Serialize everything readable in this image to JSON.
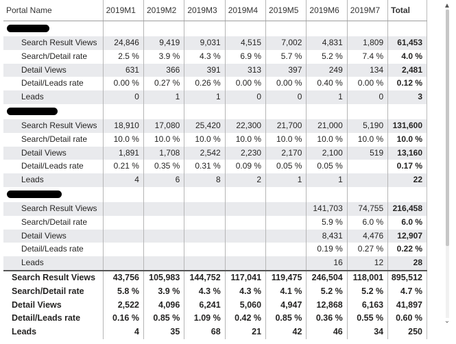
{
  "columns": {
    "name_header": "Portal Name",
    "months": [
      "2019M1",
      "2019M2",
      "2019M3",
      "2019M4",
      "2019M5",
      "2019M6",
      "2019M7"
    ],
    "total_header": "Total"
  },
  "groups": [
    {
      "rows": [
        {
          "label": "Search Result Views",
          "values": [
            "24,846",
            "9,419",
            "9,031",
            "4,515",
            "7,002",
            "4,831",
            "1,809"
          ],
          "total": "61,453"
        },
        {
          "label": "Search/Detail rate",
          "values": [
            "2.5 %",
            "3.9 %",
            "4.3 %",
            "6.9 %",
            "5.7 %",
            "5.2 %",
            "7.4 %"
          ],
          "total": "4.0 %"
        },
        {
          "label": "Detail Views",
          "values": [
            "631",
            "366",
            "391",
            "313",
            "397",
            "249",
            "134"
          ],
          "total": "2,481"
        },
        {
          "label": "Detail/Leads rate",
          "values": [
            "0.00 %",
            "0.27 %",
            "0.26 %",
            "0.00 %",
            "0.00 %",
            "0.40 %",
            "0.00 %"
          ],
          "total": "0.12 %"
        },
        {
          "label": "Leads",
          "values": [
            "0",
            "1",
            "1",
            "0",
            "0",
            "1",
            "0"
          ],
          "total": "3"
        }
      ]
    },
    {
      "rows": [
        {
          "label": "Search Result Views",
          "values": [
            "18,910",
            "17,080",
            "25,420",
            "22,300",
            "21,700",
            "21,000",
            "5,190"
          ],
          "total": "131,600"
        },
        {
          "label": "Search/Detail rate",
          "values": [
            "10.0 %",
            "10.0 %",
            "10.0 %",
            "10.0 %",
            "10.0 %",
            "10.0 %",
            "10.0 %"
          ],
          "total": "10.0 %"
        },
        {
          "label": "Detail Views",
          "values": [
            "1,891",
            "1,708",
            "2,542",
            "2,230",
            "2,170",
            "2,100",
            "519"
          ],
          "total": "13,160"
        },
        {
          "label": "Detail/Leads rate",
          "values": [
            "0.21 %",
            "0.35 %",
            "0.31 %",
            "0.09 %",
            "0.05 %",
            "0.05 %",
            ""
          ],
          "total": "0.17 %"
        },
        {
          "label": "Leads",
          "values": [
            "4",
            "6",
            "8",
            "2",
            "1",
            "1",
            ""
          ],
          "total": "22"
        }
      ]
    },
    {
      "rows": [
        {
          "label": "Search Result Views",
          "values": [
            "",
            "",
            "",
            "",
            "",
            "141,703",
            "74,755"
          ],
          "total": "216,458"
        },
        {
          "label": "Search/Detail rate",
          "values": [
            "",
            "",
            "",
            "",
            "",
            "5.9 %",
            "6.0 %"
          ],
          "total": "6.0 %"
        },
        {
          "label": "Detail Views",
          "values": [
            "",
            "",
            "",
            "",
            "",
            "8,431",
            "4,476"
          ],
          "total": "12,907"
        },
        {
          "label": "Detail/Leads rate",
          "values": [
            "",
            "",
            "",
            "",
            "",
            "0.19 %",
            "0.27 %"
          ],
          "total": "0.22 %"
        },
        {
          "label": "Leads",
          "values": [
            "",
            "",
            "",
            "",
            "",
            "16",
            "12"
          ],
          "total": "28"
        }
      ]
    }
  ],
  "totals": [
    {
      "label": "Search Result Views",
      "values": [
        "43,756",
        "105,983",
        "144,752",
        "117,041",
        "119,475",
        "246,504",
        "118,001"
      ],
      "total": "895,512"
    },
    {
      "label": "Search/Detail rate",
      "values": [
        "5.8 %",
        "3.9 %",
        "4.3 %",
        "4.3 %",
        "4.1 %",
        "5.2 %",
        "5.2 %"
      ],
      "total": "4.7 %"
    },
    {
      "label": "Detail Views",
      "values": [
        "2,522",
        "4,096",
        "6,241",
        "5,060",
        "4,947",
        "12,868",
        "6,163"
      ],
      "total": "41,897"
    },
    {
      "label": "Detail/Leads rate",
      "values": [
        "0.16 %",
        "0.85 %",
        "1.09 %",
        "0.42 %",
        "0.85 %",
        "0.36 %",
        "0.55 %"
      ],
      "total": "0.60 %"
    },
    {
      "label": "Leads",
      "values": [
        "4",
        "35",
        "68",
        "21",
        "42",
        "46",
        "34"
      ],
      "total": "250"
    }
  ],
  "scrollbar": {
    "up_glyph": "▲",
    "down_glyph": "⌄"
  },
  "colors": {
    "band": "#e9eaed",
    "header_border": "#9e9e9e",
    "redaction": "#000000"
  }
}
